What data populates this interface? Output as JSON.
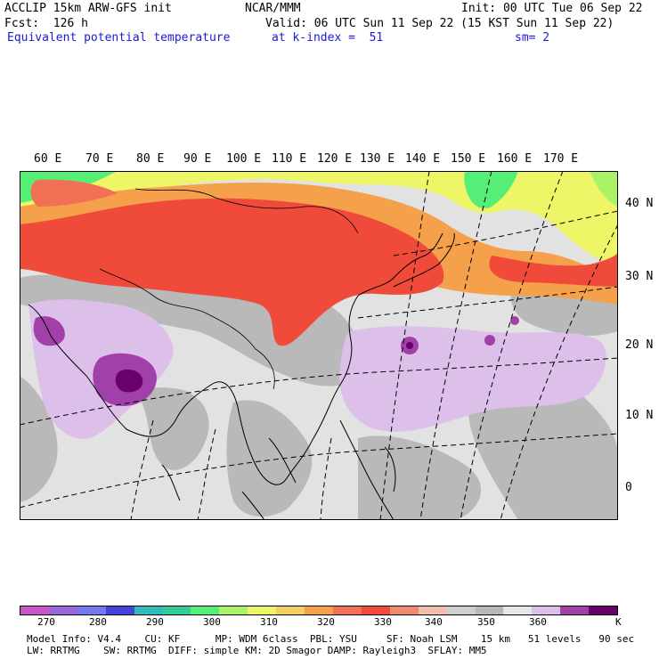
{
  "header": {
    "line1_left": "ACCLIP 15km ARW-GFS init",
    "line1_center": "NCAR/MMM",
    "line1_right": "Init: 00 UTC Tue 06 Sep 22",
    "line2_left": "Fcst:  126 h",
    "line2_right": "Valid: 06 UTC Sun 11 Sep 22 (15 KST Sun 11 Sep 22)",
    "line3_left": "Equivalent potential temperature",
    "line3_center": "at k-index =  51",
    "line3_right": "sm= 2"
  },
  "longitude_labels": [
    "60 E",
    "70 E",
    "80 E",
    "90 E",
    "100 E",
    "110 E",
    "120 E",
    "130 E",
    "140 E",
    "150 E",
    "160 E",
    "170 E"
  ],
  "latitude_labels": [
    "40 N",
    "30 N",
    "20 N",
    "10 N",
    "0"
  ],
  "colorbar": {
    "colors": [
      "#cc55cc",
      "#9966dd",
      "#7777ee",
      "#4444dd",
      "#33bbbb",
      "#33cc99",
      "#55ee77",
      "#aaf266",
      "#eef566",
      "#f5d060",
      "#f5a04a",
      "#f27055",
      "#f04a3a",
      "#f08a70",
      "#f2c0a8",
      "#cfcfcf",
      "#b8b8b8",
      "#e6e6e6",
      "#ddc0ea",
      "#a040a8",
      "#6a006a"
    ],
    "labels": [
      "270",
      "280",
      "290",
      "300",
      "310",
      "320",
      "330",
      "340",
      "350",
      "360",
      "K"
    ]
  },
  "footer": {
    "line1": "Model Info: V4.4    CU: KF      MP: WDM 6class  PBL: YSU     SF: Noah LSM    15 km   51 levels   90 sec",
    "line2": "LW: RRTMG    SW: RRTMG  DIFF: simple KM: 2D Smagor DAMP: Rayleigh3  SFLAY: MM5"
  }
}
